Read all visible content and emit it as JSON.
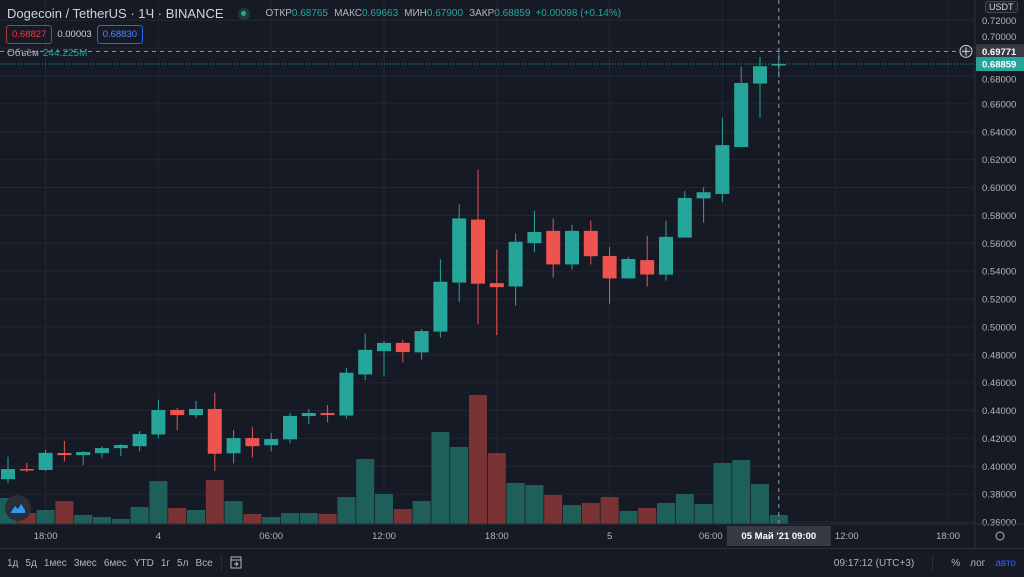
{
  "header": {
    "symbol": "Dogecoin / TetherUS · 1Ч · BINANCE",
    "ohlc": {
      "open_label": "ОТКР",
      "open": "0.68765",
      "high_label": "МАКС",
      "high": "0.69663",
      "low_label": "МИН",
      "low": "0.67900",
      "close_label": "ЗАКР",
      "close": "0.68859",
      "change": "+0.00098 (+0.14%)"
    },
    "bid": "0.68827",
    "spread": "0.00003",
    "ask": "0.68830",
    "volume_label": "Объём",
    "volume_value": "244.225M"
  },
  "price_axis": {
    "currency": "USDT",
    "ticks": [
      "0.36000",
      "0.38000",
      "0.40000",
      "0.42000",
      "0.44000",
      "0.46000",
      "0.48000",
      "0.50000",
      "0.52000",
      "0.54000",
      "0.56000",
      "0.58000",
      "0.60000",
      "0.62000",
      "0.64000",
      "0.66000",
      "0.68000",
      "0.70000",
      "0.72000"
    ],
    "crosshair_price": "0.69771",
    "last_price": "0.68859"
  },
  "time_axis": {
    "labels": [
      {
        "label": "18:00",
        "candle": 2
      },
      {
        "label": "4",
        "candle": 8
      },
      {
        "label": "06:00",
        "candle": 14
      },
      {
        "label": "12:00",
        "candle": 20
      },
      {
        "label": "18:00",
        "candle": 26
      },
      {
        "label": "5",
        "candle": 32
      },
      {
        "label": "06:00",
        "candle": 38
      },
      {
        "label": "12:00",
        "candle": 44
      },
      {
        "label": "18:00",
        "candle": 50
      }
    ],
    "crosshair_label": "05 Май '21   09:00"
  },
  "colors": {
    "up": "#26a69a",
    "down": "#ef5350",
    "vol_up": "#1f5f59",
    "vol_down": "#7a3335",
    "background": "#161a25",
    "grid": "#232632",
    "accent": "#2962ff"
  },
  "chart_data": {
    "type": "candlestick",
    "interval": "1Ч",
    "ylim": [
      0.36,
      0.72
    ],
    "grid": true,
    "candles": [
      [
        0.3907,
        0.4068,
        0.3878,
        0.398,
        702
      ],
      [
        0.398,
        0.4024,
        0.3958,
        0.3973,
        297
      ],
      [
        0.3973,
        0.4118,
        0.3965,
        0.4096,
        378
      ],
      [
        0.4095,
        0.4182,
        0.4036,
        0.408,
        621
      ],
      [
        0.408,
        0.4109,
        0.4007,
        0.4102,
        243
      ],
      [
        0.4094,
        0.4145,
        0.4057,
        0.413,
        189
      ],
      [
        0.413,
        0.4159,
        0.4072,
        0.4152,
        135
      ],
      [
        0.4144,
        0.4253,
        0.4107,
        0.4231,
        459
      ],
      [
        0.4228,
        0.4477,
        0.4199,
        0.4404,
        1161
      ],
      [
        0.4404,
        0.4418,
        0.4258,
        0.4367,
        432
      ],
      [
        0.4367,
        0.4469,
        0.4345,
        0.4411,
        378
      ],
      [
        0.4411,
        0.4528,
        0.3966,
        0.409,
        1188
      ],
      [
        0.4093,
        0.4261,
        0.402,
        0.4202,
        621
      ],
      [
        0.4202,
        0.4283,
        0.4064,
        0.4144,
        270
      ],
      [
        0.4151,
        0.4239,
        0.4107,
        0.4195,
        189
      ],
      [
        0.4193,
        0.4383,
        0.4164,
        0.4361,
        297
      ],
      [
        0.436,
        0.4411,
        0.4301,
        0.4382,
        297
      ],
      [
        0.4382,
        0.444,
        0.4316,
        0.4367,
        270
      ],
      [
        0.4364,
        0.4707,
        0.4342,
        0.4671,
        729
      ],
      [
        0.4659,
        0.4951,
        0.4616,
        0.4835,
        1755
      ],
      [
        0.4826,
        0.4899,
        0.4644,
        0.4885,
        810
      ],
      [
        0.4885,
        0.4907,
        0.4746,
        0.4819,
        405
      ],
      [
        0.4817,
        0.4985,
        0.4766,
        0.497,
        621
      ],
      [
        0.4966,
        0.5485,
        0.4923,
        0.5324,
        2484
      ],
      [
        0.5318,
        0.588,
        0.5179,
        0.5778,
        2079
      ],
      [
        0.577,
        0.6127,
        0.5018,
        0.531,
        3483
      ],
      [
        0.5314,
        0.5555,
        0.4941,
        0.5285,
        1917
      ],
      [
        0.529,
        0.5669,
        0.5151,
        0.5611,
        1107
      ],
      [
        0.5601,
        0.5834,
        0.5535,
        0.5681,
        1053
      ],
      [
        0.5689,
        0.5777,
        0.5354,
        0.5448,
        783
      ],
      [
        0.5448,
        0.5733,
        0.5412,
        0.5689,
        513
      ],
      [
        0.5689,
        0.5762,
        0.5448,
        0.5507,
        567
      ],
      [
        0.5509,
        0.5574,
        0.5166,
        0.5348,
        729
      ],
      [
        0.5348,
        0.5501,
        0.5348,
        0.5487,
        351
      ],
      [
        0.5479,
        0.5654,
        0.5289,
        0.5376,
        432
      ],
      [
        0.5375,
        0.5762,
        0.5332,
        0.5646,
        567
      ],
      [
        0.5641,
        0.5976,
        0.5641,
        0.5925,
        810
      ],
      [
        0.5922,
        0.6003,
        0.5747,
        0.5966,
        540
      ],
      [
        0.5954,
        0.6501,
        0.5895,
        0.6304,
        1647
      ],
      [
        0.629,
        0.6867,
        0.629,
        0.675,
        1728
      ],
      [
        0.6746,
        0.6936,
        0.6498,
        0.687,
        1080
      ],
      [
        0.68765,
        0.69663,
        0.679,
        0.68859,
        244.225
      ]
    ],
    "candle_fields": [
      "open",
      "high",
      "low",
      "close",
      "volume_M"
    ]
  },
  "bottom": {
    "ranges": [
      "1д",
      "5д",
      "1мес",
      "3мес",
      "6мес",
      "YTD",
      "1г",
      "5л",
      "Все"
    ],
    "time": "09:17:12 (UTC+3)",
    "percent": "%",
    "log": "лог",
    "auto": "авто"
  }
}
